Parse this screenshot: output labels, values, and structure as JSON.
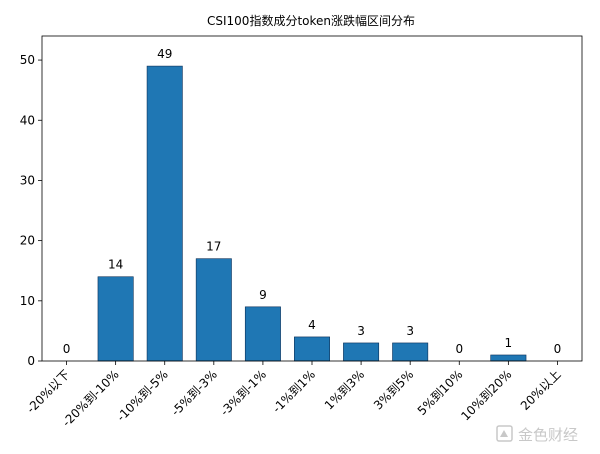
{
  "chart_data": {
    "type": "bar",
    "title": "CSI100指数成分token涨跌幅区间分布",
    "xlabel": "",
    "ylabel": "",
    "categories": [
      "-20%以下",
      "-20%到-10%",
      "-10%到-5%",
      "-5%到-3%",
      "-3%到-1%",
      "-1%到1%",
      "1%到3%",
      "3%到5%",
      "5%到10%",
      "10%到20%",
      "20%以上"
    ],
    "values": [
      0,
      14,
      49,
      17,
      9,
      4,
      3,
      3,
      0,
      1,
      0
    ],
    "ylim": [
      0,
      54
    ],
    "yticks": [
      0,
      10,
      20,
      30,
      40,
      50
    ],
    "grid": false,
    "bar_color": "#1f77b4"
  },
  "watermark": {
    "text": "金色财经"
  }
}
